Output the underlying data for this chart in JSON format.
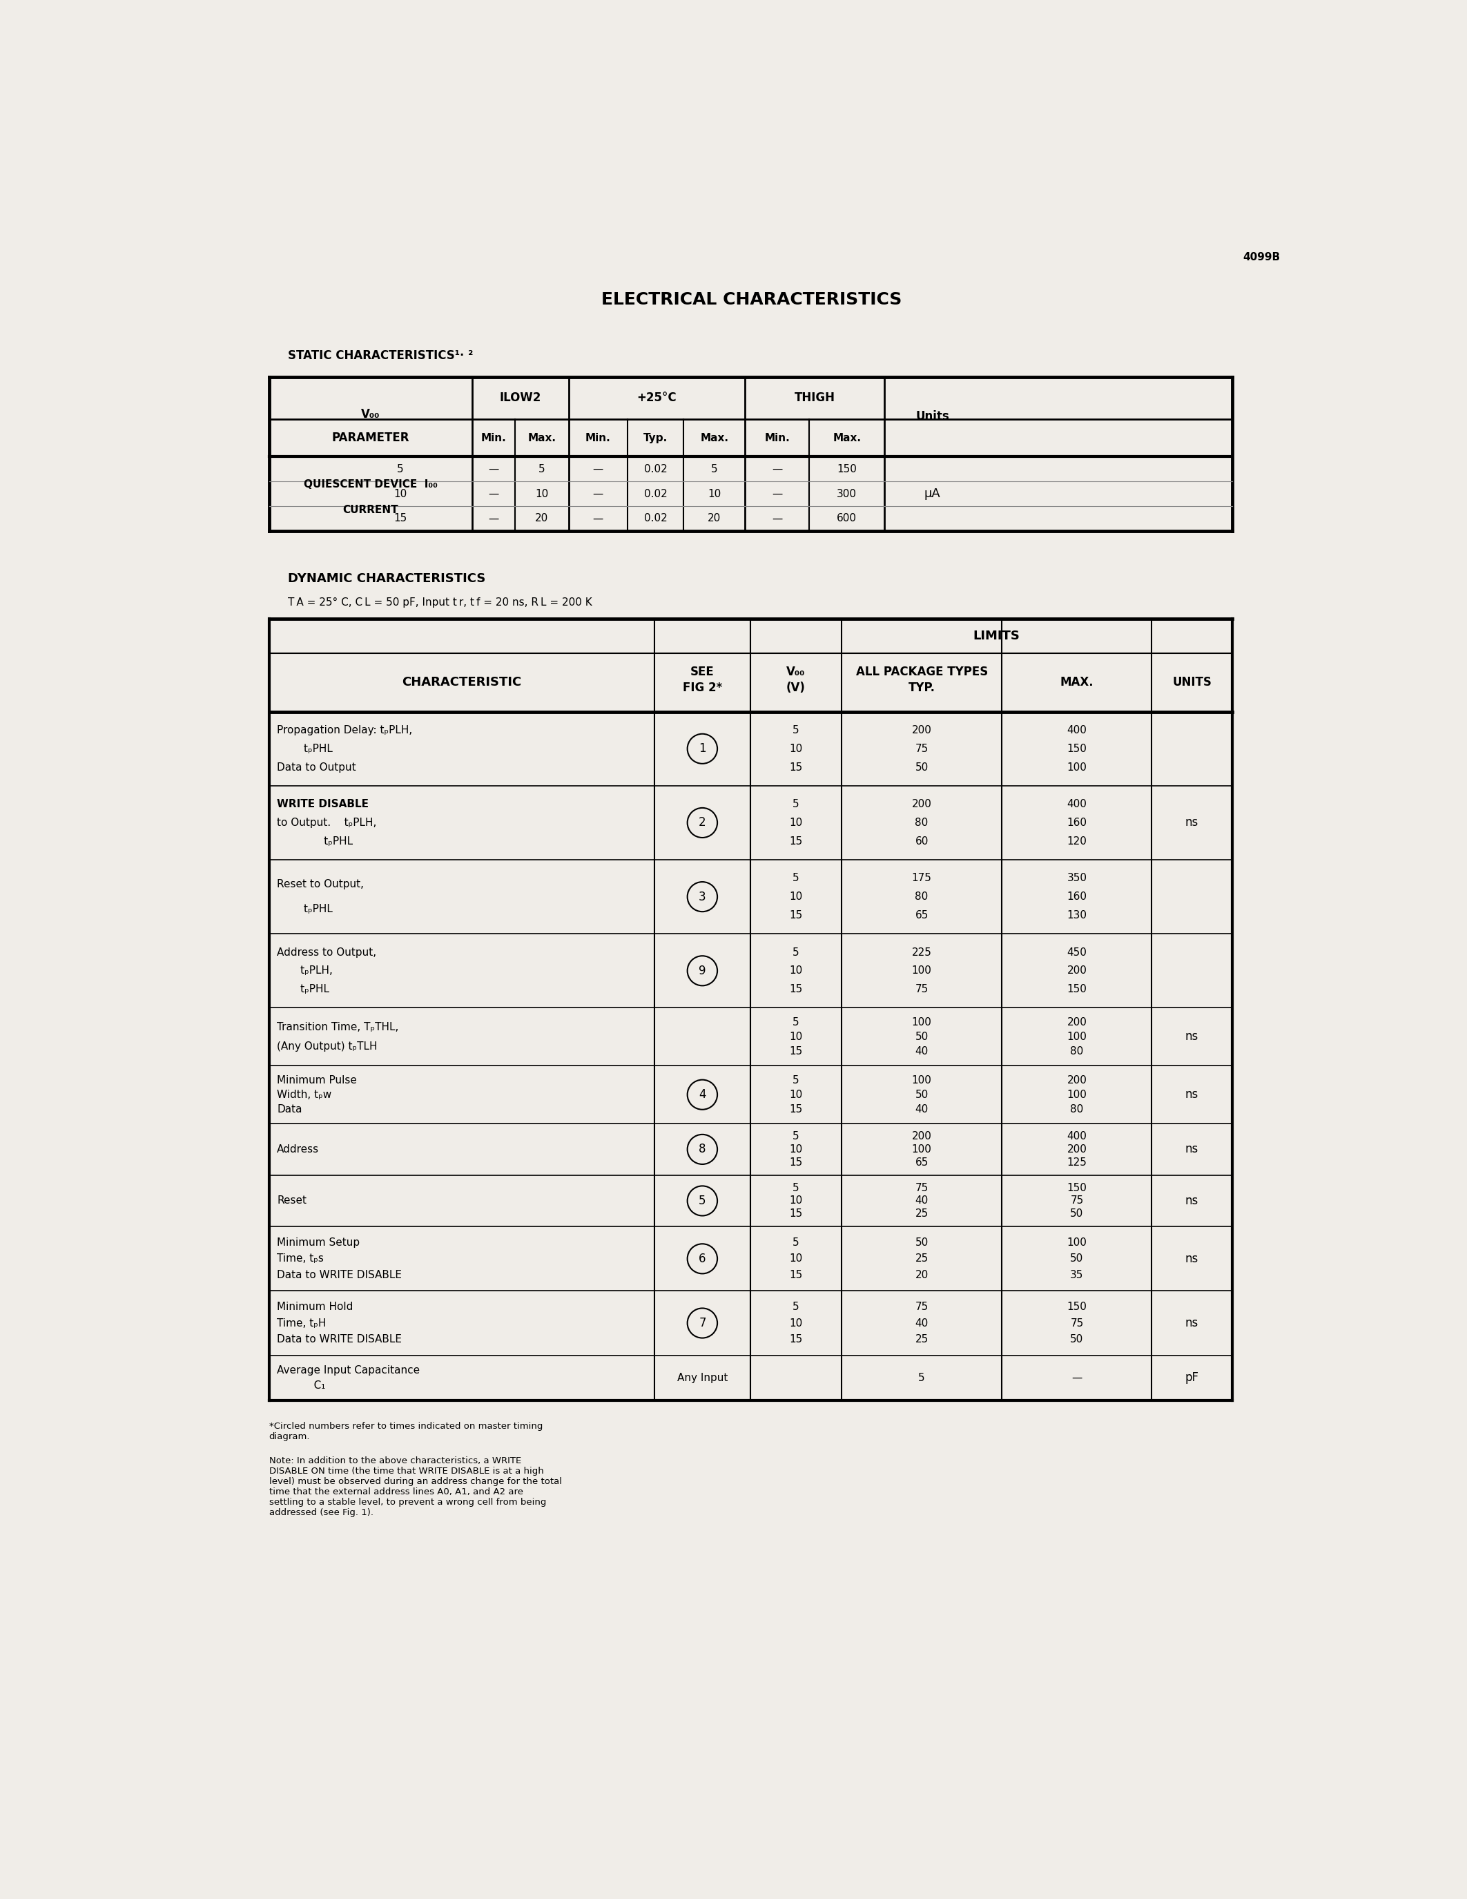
{
  "page_number": "4099B",
  "main_title": "ELECTRICAL CHARACTERISTICS",
  "static_title": "STATIC CHARACTERISTICS¹· ²",
  "dynamic_title": "DYNAMIC CHARACTERISTICS",
  "dynamic_cond": "T A = 25° C, C L = 50 pF, Input t r, t f = 20 ns, R L = 200 K",
  "footnote1": "*Circled numbers refer to times indicated on master timing\ndiagram.",
  "footnote2": "Note: In addition to the above characteristics, a WRITE\nDISABLE ON time (the time that WRITE DISABLE is at a high\nlevel) must be observed during an address change for the total\ntime that the external address lines A0, A1, and A2 are\nsettling to a stable level, to prevent a wrong cell from being\naddressed (see Fig. 1).",
  "bg_color": "#f0ede8"
}
